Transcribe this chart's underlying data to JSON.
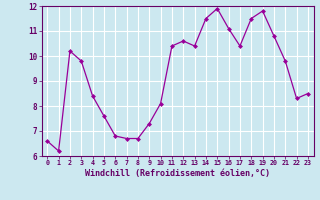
{
  "x": [
    0,
    1,
    2,
    3,
    4,
    5,
    6,
    7,
    8,
    9,
    10,
    11,
    12,
    13,
    14,
    15,
    16,
    17,
    18,
    19,
    20,
    21,
    22,
    23
  ],
  "y": [
    6.6,
    6.2,
    10.2,
    9.8,
    8.4,
    7.6,
    6.8,
    6.7,
    6.7,
    7.3,
    8.1,
    10.4,
    10.6,
    10.4,
    11.5,
    11.9,
    11.1,
    10.4,
    11.5,
    11.8,
    10.8,
    9.8,
    8.3,
    8.5
  ],
  "xlabel": "Windchill (Refroidissement éolien,°C)",
  "ylim": [
    6,
    12
  ],
  "xlim": [
    -0.5,
    23.5
  ],
  "yticks": [
    6,
    7,
    8,
    9,
    10,
    11,
    12
  ],
  "xticks": [
    0,
    1,
    2,
    3,
    4,
    5,
    6,
    7,
    8,
    9,
    10,
    11,
    12,
    13,
    14,
    15,
    16,
    17,
    18,
    19,
    20,
    21,
    22,
    23
  ],
  "line_color": "#990099",
  "marker_color": "#990099",
  "bg_color": "#cce8f0",
  "grid_color": "#ffffff",
  "label_color": "#660066",
  "tick_label_color": "#660066"
}
